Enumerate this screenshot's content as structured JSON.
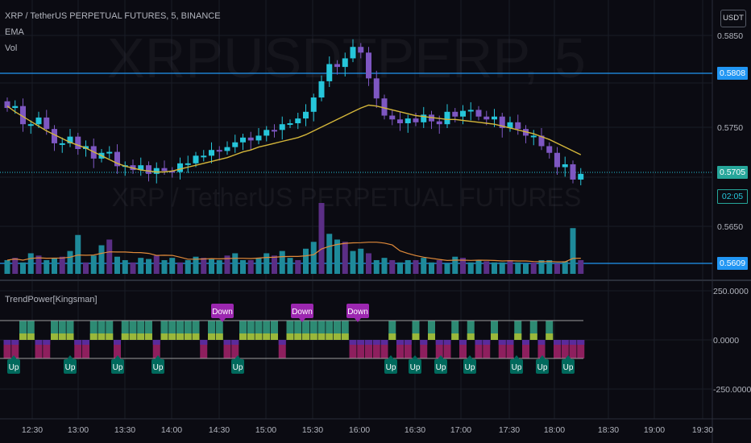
{
  "header": {
    "title": "XRP / TetherUS PERPETUAL FUTURES, 5, BINANCE",
    "indicators": [
      "EMA",
      "Vol"
    ],
    "currency_button": "USDT"
  },
  "watermark": {
    "ticker": "XRPUSDTPERP, 5",
    "description": "XRP / TetherUS PERPETUAL FUTURES"
  },
  "price_axis": {
    "ticks": [
      "0.5850",
      "0.5750",
      "0.5650"
    ],
    "labels": {
      "high_line": "0.5808",
      "last_price": "0.5705",
      "countdown": "02:05",
      "low_line": "0.5609"
    }
  },
  "oscillator": {
    "name": "TrendPower[Kingsman]",
    "axis_ticks": [
      "250.0000",
      "0.0000",
      "-250.0000"
    ],
    "down_label": "Down",
    "up_label": "Up"
  },
  "time_axis": {
    "ticks": [
      "12:30",
      "13:00",
      "13:30",
      "14:00",
      "14:30",
      "15:00",
      "15:30",
      "16:00",
      "16:30",
      "17:00",
      "17:30",
      "18:00",
      "18:30",
      "19:00",
      "19:30"
    ]
  },
  "colors": {
    "background": "#0b0b12",
    "bull": "#26c6da",
    "bear": "#7e57c2",
    "ema": "#d4b63a",
    "vol_ma": "#e08a3a",
    "hline": "#2196f3",
    "label_down": "#9c27b0",
    "label_up": "#00695c"
  },
  "chart_data": {
    "type": "candlestick",
    "symbol": "XRP / TetherUS PERPETUAL FUTURES",
    "interval": "5",
    "x_range": [
      "12:20",
      "19:40"
    ],
    "y_range": [
      0.5605,
      0.5865
    ],
    "series": [
      {
        "name": "EMA",
        "values": [
          0.5776,
          0.577,
          0.5765,
          0.576,
          0.5755,
          0.575,
          0.5746,
          0.5742,
          0.5738,
          0.5735,
          0.5732,
          0.5728,
          0.5724,
          0.572,
          0.5716,
          0.5713,
          0.5711,
          0.5709,
          0.5708,
          0.5707,
          0.5707,
          0.5708,
          0.571,
          0.5712,
          0.5714,
          0.5716,
          0.5718,
          0.572,
          0.5722,
          0.5725,
          0.5728,
          0.573,
          0.5733,
          0.5735,
          0.5737,
          0.5739,
          0.5741,
          0.5743,
          0.5746,
          0.575,
          0.5754,
          0.5758,
          0.5762,
          0.5766,
          0.577,
          0.5774,
          0.5777,
          0.5776,
          0.5774,
          0.5772,
          0.577,
          0.5768,
          0.5766,
          0.5765,
          0.5764,
          0.5763,
          0.5762,
          0.5762,
          0.5761,
          0.576,
          0.5759,
          0.5758,
          0.5757,
          0.5755,
          0.5753,
          0.5751,
          0.5749,
          0.5747,
          0.5744,
          0.5741,
          0.5737,
          0.5733,
          0.5729,
          0.5725
        ]
      },
      {
        "name": "Vol",
        "values": [
          12,
          14,
          10,
          18,
          16,
          12,
          14,
          15,
          20,
          34,
          10,
          16,
          25,
          30,
          15,
          12,
          10,
          14,
          13,
          16,
          12,
          14,
          10,
          12,
          15,
          14,
          13,
          12,
          16,
          18,
          12,
          12,
          14,
          18,
          16,
          20,
          14,
          12,
          22,
          28,
          62,
          35,
          30,
          28,
          20,
          22,
          18,
          12,
          14,
          12,
          10,
          12,
          12,
          14,
          10,
          12,
          9,
          15,
          14,
          10,
          12,
          11,
          10,
          10,
          12,
          10,
          9,
          10,
          12,
          12,
          9,
          11,
          40,
          12
        ]
      }
    ]
  }
}
